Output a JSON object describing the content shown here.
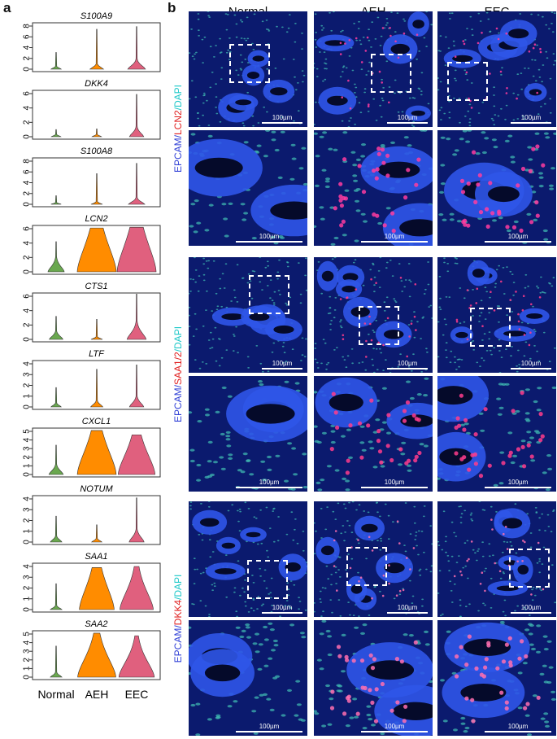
{
  "panel_a_label": "a",
  "panel_b_label": "b",
  "chart_data": {
    "type": "violin",
    "categories": [
      "Normal",
      "AEH",
      "EEC"
    ],
    "category_colors": [
      "#6aa84f",
      "#ff8c00",
      "#e0607e"
    ],
    "series": [
      {
        "name": "S100A9",
        "yticks": [
          0,
          2,
          4,
          6,
          8
        ],
        "ylim": [
          0,
          8
        ],
        "max": [
          3.1,
          7.4,
          7.9
        ],
        "bulk": [
          0.15,
          0.25,
          0.45
        ],
        "spread": [
          0.3,
          0.8,
          1.4
        ]
      },
      {
        "name": "DKK4",
        "yticks": [
          0,
          2,
          4,
          6
        ],
        "ylim": [
          0,
          6
        ],
        "max": [
          1.0,
          1.1,
          5.9
        ],
        "bulk": [
          0.05,
          0.05,
          0.35
        ],
        "spread": [
          0.2,
          0.2,
          0.9
        ]
      },
      {
        "name": "S100A8",
        "yticks": [
          0,
          2,
          4,
          6,
          8
        ],
        "ylim": [
          0,
          8
        ],
        "max": [
          1.6,
          5.7,
          7.6
        ],
        "bulk": [
          0.08,
          0.12,
          0.3
        ],
        "spread": [
          0.3,
          0.5,
          1.2
        ]
      },
      {
        "name": "LCN2",
        "yticks": [
          0,
          2,
          4,
          6
        ],
        "ylim": [
          0,
          6
        ],
        "max": [
          4.2,
          6.1,
          6.2
        ],
        "bulk": [
          0.5,
          2.6,
          2.7
        ],
        "spread": [
          1.2,
          5.5,
          5.3
        ]
      },
      {
        "name": "CTS1",
        "yticks": [
          0,
          2,
          4,
          6
        ],
        "ylim": [
          0,
          6
        ],
        "max": [
          3.2,
          2.8,
          6.3
        ],
        "bulk": [
          0.3,
          0.1,
          0.6
        ],
        "spread": [
          0.8,
          0.5,
          1.6
        ]
      },
      {
        "name": "LTF",
        "yticks": [
          0,
          1,
          2,
          3,
          4
        ],
        "ylim": [
          0,
          4
        ],
        "max": [
          1.8,
          3.5,
          3.9
        ],
        "bulk": [
          0.1,
          0.15,
          0.25
        ],
        "spread": [
          0.3,
          0.6,
          0.9
        ]
      },
      {
        "name": "CXCL1",
        "yticks": [
          0,
          1,
          2,
          3,
          4,
          5
        ],
        "ylim": [
          0,
          5
        ],
        "max": [
          3.4,
          5.1,
          4.6
        ],
        "bulk": [
          0.3,
          2.0,
          1.7
        ],
        "spread": [
          0.9,
          4.5,
          4.2
        ]
      },
      {
        "name": "NOTUM",
        "yticks": [
          0,
          1,
          2,
          3,
          4
        ],
        "ylim": [
          0,
          4
        ],
        "max": [
          2.4,
          1.6,
          4.1
        ],
        "bulk": [
          0.15,
          0.05,
          0.3
        ],
        "spread": [
          0.5,
          0.3,
          1.0
        ]
      },
      {
        "name": "SAA1",
        "yticks": [
          0,
          1,
          2,
          3,
          4
        ],
        "ylim": [
          0,
          4
        ],
        "max": [
          2.4,
          3.9,
          4.0
        ],
        "bulk": [
          0.1,
          1.5,
          1.2
        ],
        "spread": [
          0.5,
          3.9,
          3.7
        ]
      },
      {
        "name": "SAA2",
        "yticks": [
          0,
          1,
          2,
          3,
          4,
          5
        ],
        "ylim": [
          0,
          5
        ],
        "max": [
          3.6,
          5.1,
          4.8
        ],
        "bulk": [
          0.15,
          1.6,
          1.3
        ],
        "spread": [
          0.5,
          4.4,
          4.0
        ]
      }
    ]
  },
  "micrographs": {
    "columns": [
      "Normal",
      "AEH",
      "EEC"
    ],
    "row_groups": [
      {
        "label_parts": [
          {
            "text": "EPCAM/",
            "color": "#2f3fd6"
          },
          {
            "text": "LCN2",
            "color": "#e02020"
          },
          {
            "text": "/DAPI",
            "color": "#1ec8c8"
          }
        ],
        "signal_color": "#ff3ca0"
      },
      {
        "label_parts": [
          {
            "text": "EPCAM/",
            "color": "#2f3fd6"
          },
          {
            "text": "SAA1/2",
            "color": "#e02020"
          },
          {
            "text": "/DAPI",
            "color": "#1ec8c8"
          }
        ],
        "signal_color": "#ff3c8c"
      },
      {
        "label_parts": [
          {
            "text": "EPCAM/",
            "color": "#2f3fd6"
          },
          {
            "text": "DKK4",
            "color": "#e02020"
          },
          {
            "text": "/DAPI",
            "color": "#1ec8c8"
          }
        ],
        "signal_color": "#ff6fb0"
      }
    ],
    "scale_bar_label": "100µm"
  }
}
